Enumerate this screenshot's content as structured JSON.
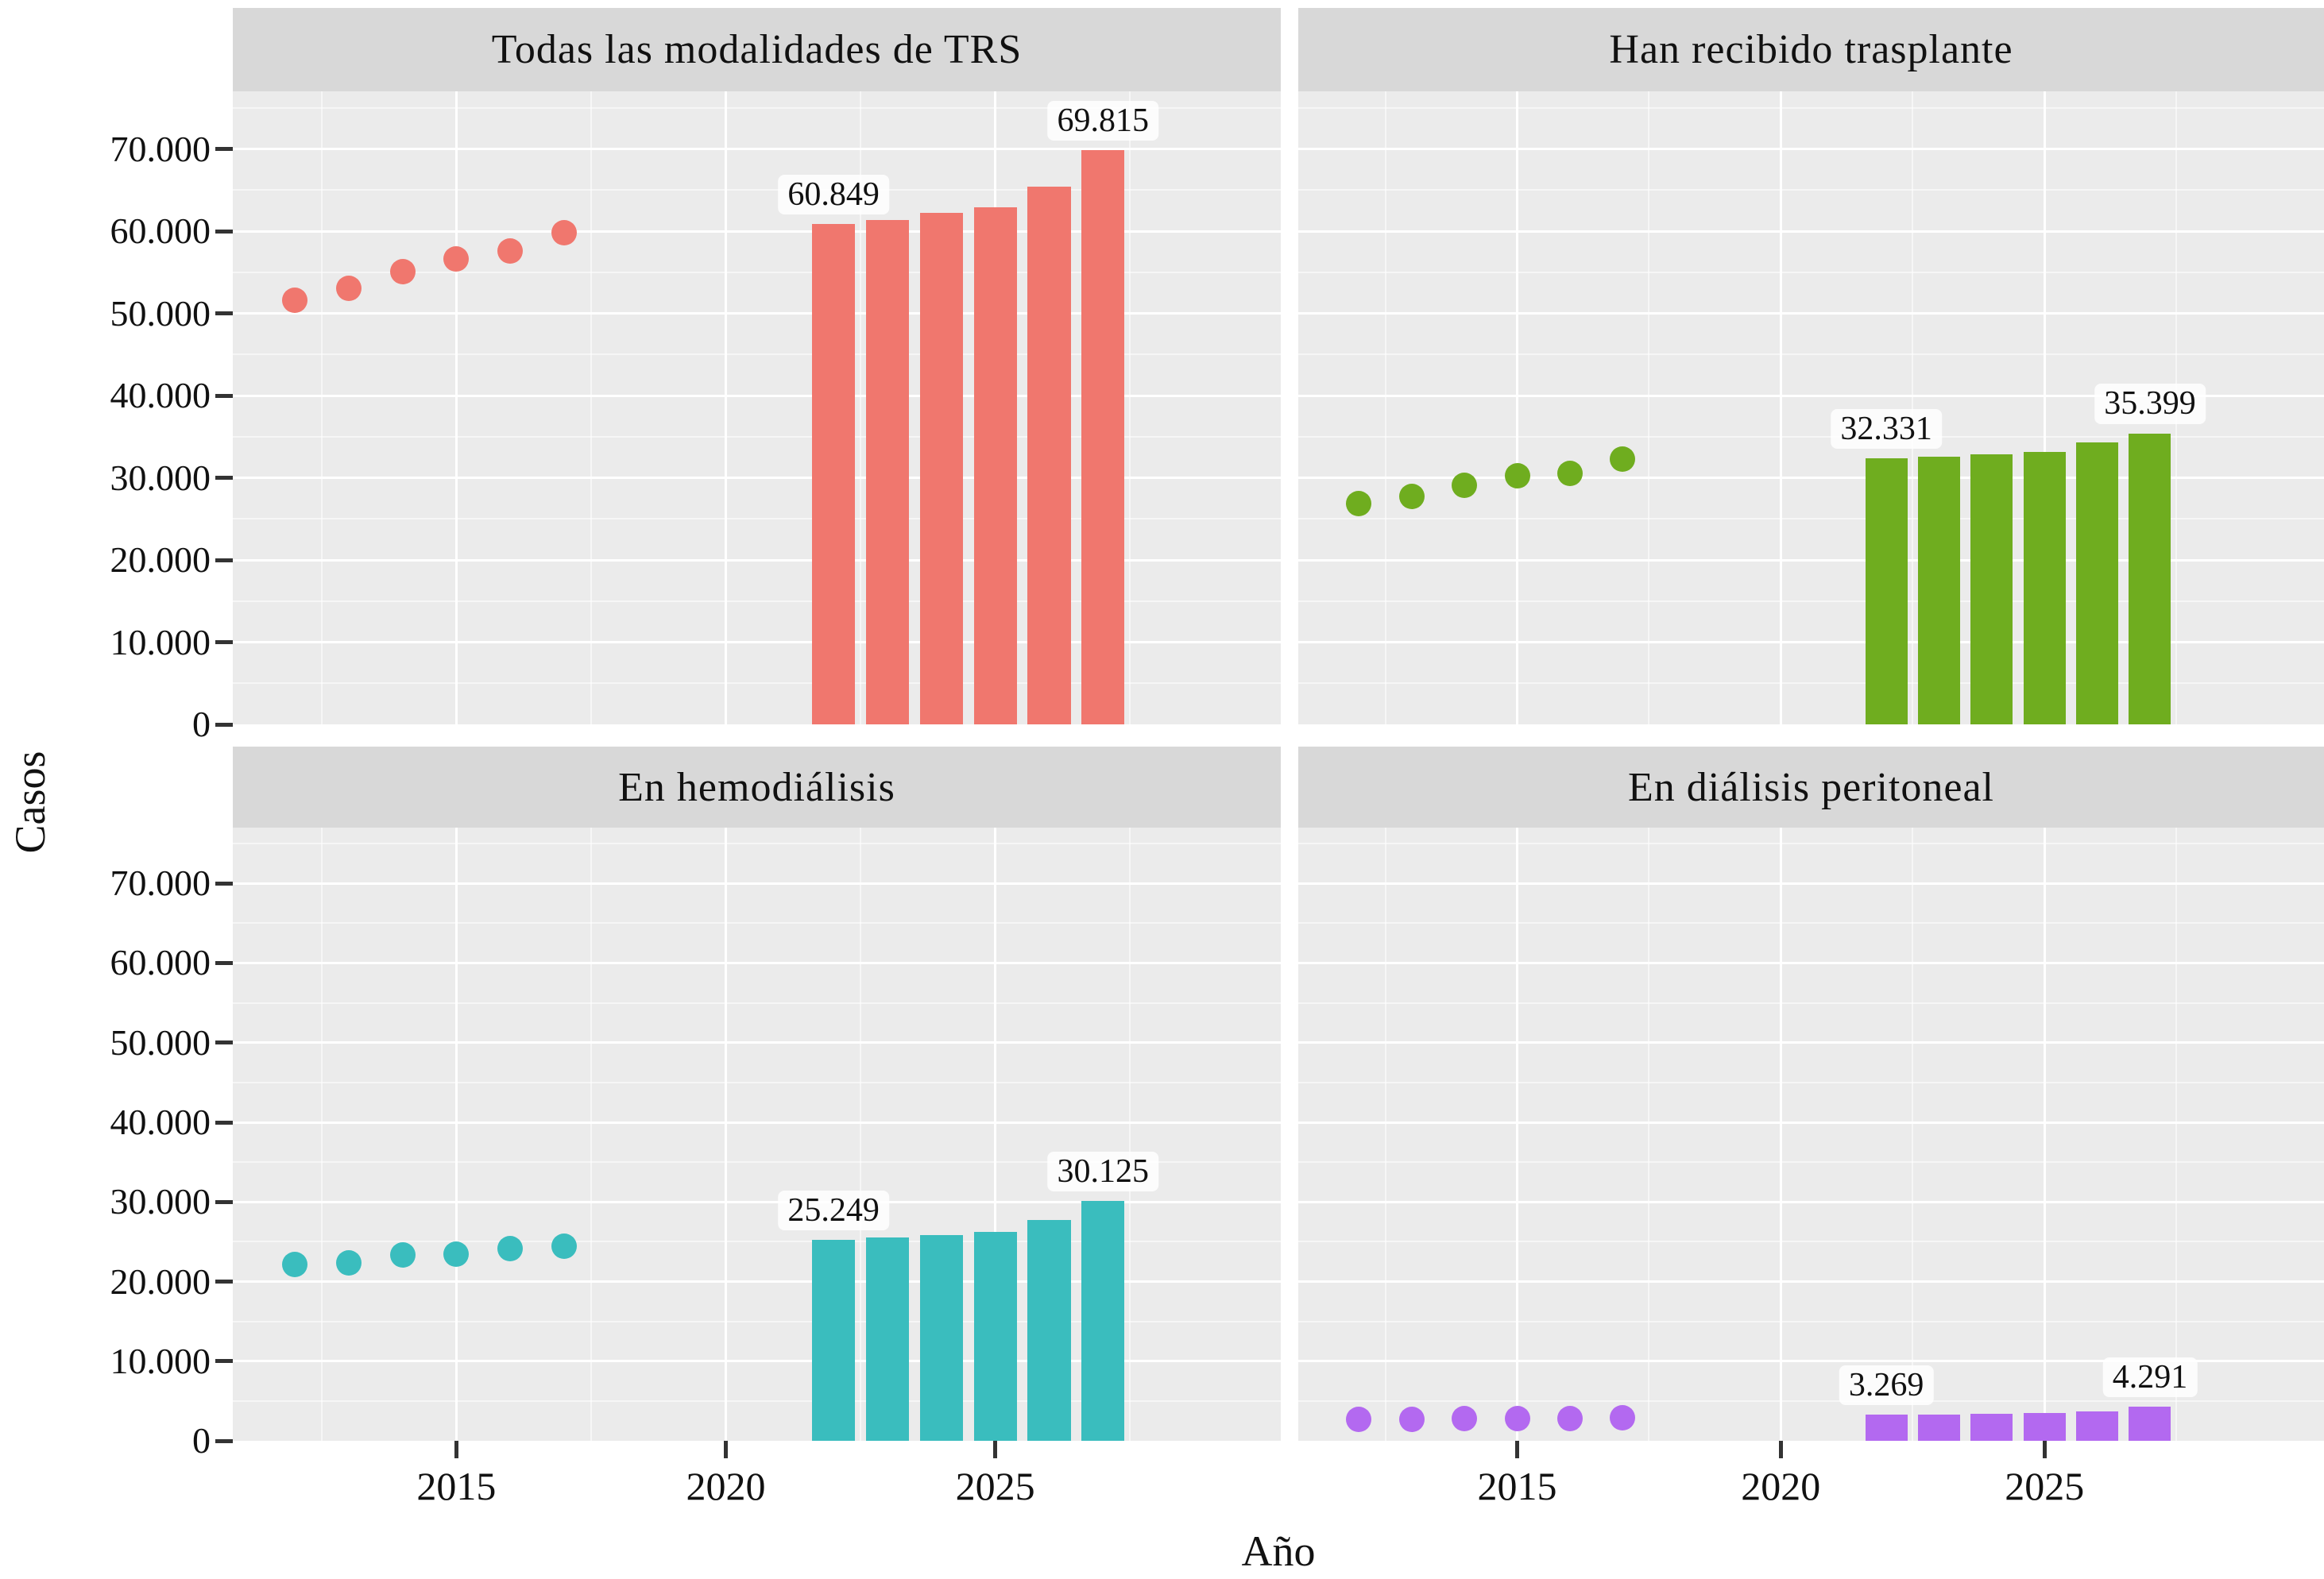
{
  "chart_data": {
    "type": "scatter+bar",
    "description": "Faceted chart (2x2): observed cases (points, 2012-2017) and projected cases (bars, 2022-2027) of renal replacement therapy in Spain",
    "ylabel": "Casos",
    "xlabel": "Año",
    "ylim": [
      0,
      77000
    ],
    "xlim": [
      2010.85,
      2030.3
    ],
    "grid": true,
    "legend": "none",
    "panel_bg": "#EBEBEB",
    "strip_bg": "#D8D8D8",
    "yticks": [
      {
        "value": 0,
        "label": "0"
      },
      {
        "value": 10000,
        "label": "10.000"
      },
      {
        "value": 20000,
        "label": "20.000"
      },
      {
        "value": 30000,
        "label": "30.000"
      },
      {
        "value": 40000,
        "label": "40.000"
      },
      {
        "value": 50000,
        "label": "50.000"
      },
      {
        "value": 60000,
        "label": "60.000"
      },
      {
        "value": 70000,
        "label": "70.000"
      }
    ],
    "xticks": [
      {
        "value": 2015,
        "label": "2015"
      },
      {
        "value": 2020,
        "label": "2020"
      },
      {
        "value": 2025,
        "label": "2025"
      }
    ],
    "minor_y": [
      5000,
      15000,
      25000,
      35000,
      45000,
      55000,
      65000,
      75000
    ],
    "minor_x": [
      2012.5,
      2017.5,
      2022.5,
      2027.5
    ],
    "point_years": [
      2012,
      2013,
      2014,
      2015,
      2016,
      2017
    ],
    "bar_years": [
      2022,
      2023,
      2024,
      2025,
      2026,
      2027
    ],
    "facets": [
      {
        "id": "todas-las-modalidades-de-trs",
        "title": "Todas las modalidades de TRS",
        "color": "#F0776E",
        "observed_points": [
          51600,
          53000,
          55100,
          56600,
          57600,
          59800
        ],
        "projected_bars": [
          60849,
          61400,
          62200,
          62900,
          65400,
          69815
        ],
        "first_bar_label": "60.849",
        "last_bar_label": "69.815"
      },
      {
        "id": "han-recibido-trasplante",
        "title": "Han recibido trasplante",
        "color": "#6FAD1F",
        "observed_points": [
          26900,
          27700,
          29100,
          30200,
          30500,
          32300
        ],
        "projected_bars": [
          32331,
          32600,
          32850,
          33100,
          34300,
          35399
        ],
        "first_bar_label": "32.331",
        "last_bar_label": "35.399"
      },
      {
        "id": "en-hemodialisis",
        "title": "En hemodiálisis",
        "color": "#3ABDBE",
        "observed_points": [
          22100,
          22300,
          23300,
          23400,
          24100,
          24400
        ],
        "projected_bars": [
          25249,
          25500,
          25800,
          26200,
          27700,
          30125
        ],
        "first_bar_label": "25.249",
        "last_bar_label": "30.125"
      },
      {
        "id": "en-dialisis-peritoneal",
        "title": "En diálisis peritoneal",
        "color": "#B369F0",
        "observed_points": [
          2650,
          2700,
          2750,
          2800,
          2800,
          2850
        ],
        "projected_bars": [
          3269,
          3320,
          3380,
          3450,
          3700,
          4291
        ],
        "first_bar_label": "3.269",
        "last_bar_label": "4.291"
      }
    ]
  }
}
